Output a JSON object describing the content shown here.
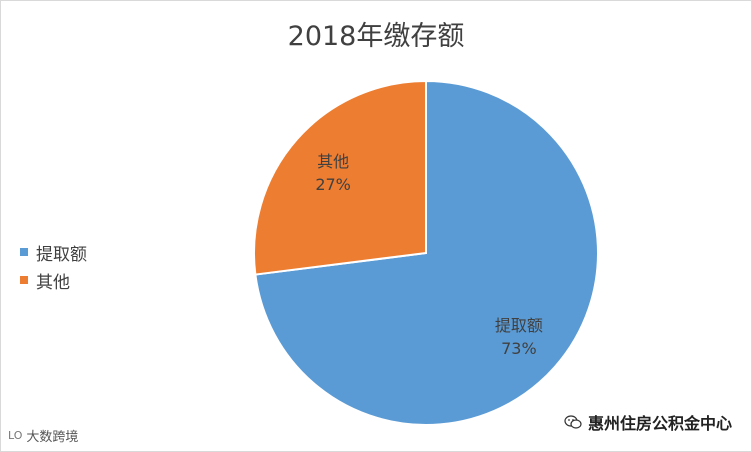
{
  "chart_data": {
    "type": "pie",
    "title": "2018年缴存额",
    "categories": [
      "提取额",
      "其他"
    ],
    "values": [
      73,
      27
    ],
    "value_labels": [
      "73%",
      "27%"
    ],
    "colors": [
      "#5b9bd5",
      "#ed7d31"
    ],
    "legend_position": "left",
    "start_angle_deg": 0,
    "direction": "clockwise"
  },
  "watermarks": {
    "right_text": "惠州住房公积金中心",
    "right_icon": "wechat-icon",
    "left_text": "大数跨境",
    "left_icon_text": "LO"
  }
}
